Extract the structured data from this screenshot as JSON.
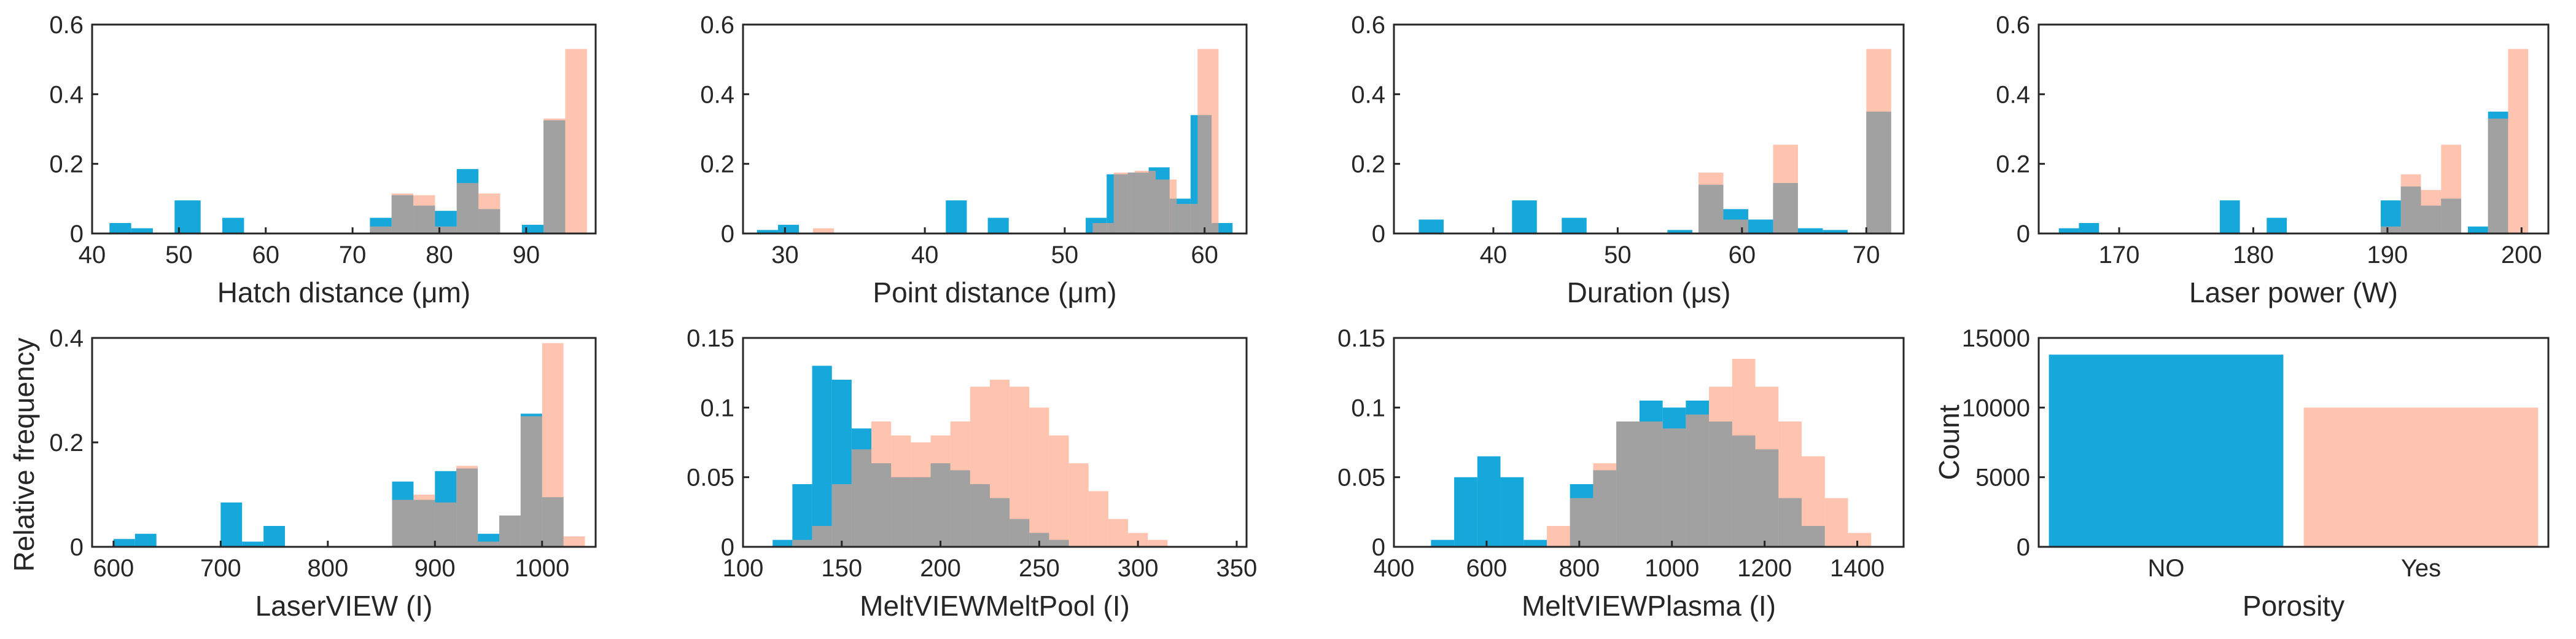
{
  "figure": {
    "shared_ylabel": "Relative frequency",
    "colors": {
      "no_porosity": "#0AA3D9",
      "porosity": "#FF9D7A",
      "overlap": "#B06D5C",
      "axis": "#262626"
    }
  },
  "chart_data": [
    {
      "type": "histogram",
      "id": "hatch",
      "xlabel": "Hatch distance (μm)",
      "ylabel": "",
      "xlim": [
        40,
        98
      ],
      "ylim": [
        0,
        0.6
      ],
      "xticks": [
        40,
        50,
        60,
        70,
        80,
        90
      ],
      "yticks": [
        0,
        0.2,
        0.4,
        0.6
      ],
      "xtick_labels": [
        "40",
        "50",
        "60",
        "70",
        "80",
        "90"
      ],
      "ytick_labels": [
        "0",
        "0.2",
        "0.4",
        "0.6"
      ],
      "series": [
        {
          "name": "NO",
          "bins": [
            [
              42,
              44.5,
              0.03
            ],
            [
              44.5,
              47,
              0.015
            ],
            [
              49.5,
              52.5,
              0.095
            ],
            [
              55,
              57.5,
              0.045
            ],
            [
              72,
              74.5,
              0.045
            ],
            [
              74.5,
              77,
              0.11
            ],
            [
              77,
              79.5,
              0.08
            ],
            [
              79.5,
              82,
              0.065
            ],
            [
              82,
              84.5,
              0.185
            ],
            [
              84.5,
              87,
              0.07
            ],
            [
              89.5,
              92,
              0.025
            ],
            [
              92,
              94.5,
              0.325
            ]
          ]
        },
        {
          "name": "Yes",
          "bins": [
            [
              72,
              74.5,
              0.02
            ],
            [
              74.5,
              77,
              0.115
            ],
            [
              77,
              79.5,
              0.11
            ],
            [
              79.5,
              82,
              0.02
            ],
            [
              82,
              84.5,
              0.145
            ],
            [
              84.5,
              87,
              0.115
            ],
            [
              92,
              94.5,
              0.33
            ],
            [
              94.5,
              97,
              0.53
            ]
          ]
        }
      ]
    },
    {
      "type": "histogram",
      "id": "point",
      "xlabel": "Point distance (μm)",
      "ylabel": "",
      "xlim": [
        27,
        63
      ],
      "ylim": [
        0,
        0.6
      ],
      "xticks": [
        30,
        40,
        50,
        60
      ],
      "yticks": [
        0,
        0.2,
        0.4,
        0.6
      ],
      "xtick_labels": [
        "30",
        "40",
        "50",
        "60"
      ],
      "ytick_labels": [
        "0",
        "0.2",
        "0.4",
        "0.6"
      ],
      "series": [
        {
          "name": "NO",
          "bins": [
            [
              28,
              29.5,
              0.01
            ],
            [
              29.5,
              31,
              0.025
            ],
            [
              41.5,
              43,
              0.095
            ],
            [
              44.5,
              46,
              0.045
            ],
            [
              51.5,
              53,
              0.045
            ],
            [
              53,
              54.5,
              0.17
            ],
            [
              54.5,
              56,
              0.175
            ],
            [
              56,
              57.5,
              0.19
            ],
            [
              57.5,
              59,
              0.1
            ],
            [
              59,
              60.5,
              0.34
            ],
            [
              60.5,
              62,
              0.03
            ]
          ]
        },
        {
          "name": "Yes",
          "bins": [
            [
              32,
              33.5,
              0.015
            ],
            [
              52,
              53.5,
              0.03
            ],
            [
              53.5,
              55,
              0.175
            ],
            [
              55,
              56.5,
              0.18
            ],
            [
              56.5,
              58,
              0.155
            ],
            [
              58,
              59.5,
              0.085
            ],
            [
              59.5,
              61,
              0.53
            ]
          ]
        }
      ]
    },
    {
      "type": "histogram",
      "id": "duration",
      "xlabel": "Duration (μs)",
      "ylabel": "",
      "xlim": [
        32,
        73
      ],
      "ylim": [
        0,
        0.6
      ],
      "xticks": [
        40,
        50,
        60,
        70
      ],
      "yticks": [
        0,
        0.2,
        0.4,
        0.6
      ],
      "xtick_labels": [
        "40",
        "50",
        "60",
        "70"
      ],
      "ytick_labels": [
        "0",
        "0.2",
        "0.4",
        "0.6"
      ],
      "series": [
        {
          "name": "NO",
          "bins": [
            [
              34,
              36,
              0.04
            ],
            [
              41.5,
              43.5,
              0.095
            ],
            [
              45.5,
              47.5,
              0.045
            ],
            [
              54,
              56,
              0.01
            ],
            [
              56.5,
              58.5,
              0.14
            ],
            [
              58.5,
              60.5,
              0.07
            ],
            [
              60.5,
              62.5,
              0.04
            ],
            [
              62.5,
              64.5,
              0.145
            ],
            [
              64.5,
              66.5,
              0.015
            ],
            [
              66.5,
              68.5,
              0.01
            ],
            [
              70,
              72,
              0.35
            ]
          ]
        },
        {
          "name": "Yes",
          "bins": [
            [
              56.5,
              58.5,
              0.175
            ],
            [
              58.5,
              60.5,
              0.04
            ],
            [
              62.5,
              64.5,
              0.255
            ],
            [
              70,
              72,
              0.53
            ]
          ]
        }
      ]
    },
    {
      "type": "histogram",
      "id": "laser",
      "xlabel": "Laser power (W)",
      "ylabel": "",
      "xlim": [
        164,
        202
      ],
      "ylim": [
        0,
        0.6
      ],
      "xticks": [
        170,
        180,
        190,
        200
      ],
      "yticks": [
        0,
        0.2,
        0.4,
        0.6
      ],
      "xtick_labels": [
        "170",
        "180",
        "190",
        "200"
      ],
      "ytick_labels": [
        "0",
        "0.2",
        "0.4",
        "0.6"
      ],
      "series": [
        {
          "name": "NO",
          "bins": [
            [
              165.5,
              167,
              0.015
            ],
            [
              167,
              168.5,
              0.03
            ],
            [
              177.5,
              179,
              0.095
            ],
            [
              181,
              182.5,
              0.045
            ],
            [
              189.5,
              191,
              0.095
            ],
            [
              191,
              192.5,
              0.135
            ],
            [
              192.5,
              194,
              0.08
            ],
            [
              194,
              195.5,
              0.1
            ],
            [
              196,
              197.5,
              0.02
            ],
            [
              197.5,
              199,
              0.35
            ]
          ]
        },
        {
          "name": "Yes",
          "bins": [
            [
              189.5,
              191,
              0.02
            ],
            [
              191,
              192.5,
              0.17
            ],
            [
              192.5,
              194,
              0.125
            ],
            [
              194,
              195.5,
              0.255
            ],
            [
              197.5,
              199,
              0.33
            ],
            [
              199,
              200.5,
              0.53
            ]
          ]
        }
      ]
    },
    {
      "type": "histogram",
      "id": "laserview",
      "xlabel": "LaserVIEW (I)",
      "ylabel": "",
      "xlim": [
        580,
        1050
      ],
      "ylim": [
        0,
        0.4
      ],
      "xticks": [
        600,
        700,
        800,
        900,
        1000
      ],
      "yticks": [
        0,
        0.2,
        0.4
      ],
      "xtick_labels": [
        "600",
        "700",
        "800",
        "900",
        "1000"
      ],
      "ytick_labels": [
        "0",
        "0.2",
        "0.4"
      ],
      "series": [
        {
          "name": "NO",
          "bins": [
            [
              600,
              620,
              0.015
            ],
            [
              620,
              640,
              0.025
            ],
            [
              700,
              720,
              0.085
            ],
            [
              720,
              740,
              0.01
            ],
            [
              740,
              760,
              0.04
            ],
            [
              860,
              880,
              0.125
            ],
            [
              880,
              900,
              0.09
            ],
            [
              900,
              920,
              0.145
            ],
            [
              920,
              940,
              0.15
            ],
            [
              940,
              960,
              0.025
            ],
            [
              960,
              980,
              0.06
            ],
            [
              980,
              1000,
              0.255
            ],
            [
              1000,
              1020,
              0.095
            ]
          ]
        },
        {
          "name": "Yes",
          "bins": [
            [
              860,
              880,
              0.09
            ],
            [
              880,
              900,
              0.1
            ],
            [
              900,
              920,
              0.085
            ],
            [
              920,
              940,
              0.155
            ],
            [
              940,
              960,
              0.01
            ],
            [
              960,
              980,
              0.06
            ],
            [
              980,
              1000,
              0.25
            ],
            [
              1000,
              1020,
              0.39
            ],
            [
              1020,
              1040,
              0.02
            ]
          ]
        }
      ]
    },
    {
      "type": "histogram",
      "id": "meltpool",
      "xlabel": "MeltVIEWMeltPool (I)",
      "ylabel": "",
      "xlim": [
        100,
        355
      ],
      "ylim": [
        0,
        0.15
      ],
      "xticks": [
        100,
        150,
        200,
        250,
        300,
        350
      ],
      "yticks": [
        0,
        0.05,
        0.1,
        0.15
      ],
      "xtick_labels": [
        "100",
        "150",
        "200",
        "250",
        "300",
        "350"
      ],
      "ytick_labels": [
        "0",
        "0.05",
        "0.1",
        "0.15"
      ],
      "series": [
        {
          "name": "NO",
          "bins": [
            [
              115,
              125,
              0.005
            ],
            [
              125,
              135,
              0.045
            ],
            [
              135,
              145,
              0.13
            ],
            [
              145,
              155,
              0.12
            ],
            [
              155,
              165,
              0.085
            ],
            [
              165,
              175,
              0.06
            ],
            [
              175,
              185,
              0.05
            ],
            [
              185,
              195,
              0.05
            ],
            [
              195,
              205,
              0.06
            ],
            [
              205,
              215,
              0.055
            ],
            [
              215,
              225,
              0.045
            ],
            [
              225,
              235,
              0.035
            ],
            [
              235,
              245,
              0.02
            ],
            [
              245,
              255,
              0.01
            ],
            [
              255,
              265,
              0.005
            ]
          ]
        },
        {
          "name": "Yes",
          "bins": [
            [
              125,
              135,
              0.005
            ],
            [
              135,
              145,
              0.015
            ],
            [
              145,
              155,
              0.045
            ],
            [
              155,
              165,
              0.07
            ],
            [
              165,
              175,
              0.09
            ],
            [
              175,
              185,
              0.08
            ],
            [
              185,
              195,
              0.075
            ],
            [
              195,
              205,
              0.08
            ],
            [
              205,
              215,
              0.09
            ],
            [
              215,
              225,
              0.115
            ],
            [
              225,
              235,
              0.12
            ],
            [
              235,
              245,
              0.115
            ],
            [
              245,
              255,
              0.1
            ],
            [
              255,
              265,
              0.08
            ],
            [
              265,
              275,
              0.06
            ],
            [
              275,
              285,
              0.04
            ],
            [
              285,
              295,
              0.02
            ],
            [
              295,
              305,
              0.01
            ],
            [
              305,
              315,
              0.005
            ]
          ]
        }
      ]
    },
    {
      "type": "histogram",
      "id": "plasma",
      "xlabel": "MeltVIEWPlasma (I)",
      "ylabel": "",
      "xlim": [
        400,
        1500
      ],
      "ylim": [
        0,
        0.15
      ],
      "xticks": [
        400,
        600,
        800,
        1000,
        1200,
        1400
      ],
      "yticks": [
        0,
        0.05,
        0.1,
        0.15
      ],
      "xtick_labels": [
        "400",
        "600",
        "800",
        "1000",
        "1200",
        "1400"
      ],
      "ytick_labels": [
        "0",
        "0.05",
        "0.1",
        "0.15"
      ],
      "series": [
        {
          "name": "NO",
          "bins": [
            [
              480,
              530,
              0.005
            ],
            [
              530,
              580,
              0.05
            ],
            [
              580,
              630,
              0.065
            ],
            [
              630,
              680,
              0.05
            ],
            [
              680,
              730,
              0.005
            ],
            [
              780,
              830,
              0.045
            ],
            [
              830,
              880,
              0.055
            ],
            [
              880,
              930,
              0.09
            ],
            [
              930,
              980,
              0.105
            ],
            [
              980,
              1030,
              0.1
            ],
            [
              1030,
              1080,
              0.105
            ],
            [
              1080,
              1130,
              0.09
            ],
            [
              1130,
              1180,
              0.08
            ],
            [
              1180,
              1230,
              0.07
            ],
            [
              1230,
              1280,
              0.035
            ],
            [
              1280,
              1330,
              0.015
            ]
          ]
        },
        {
          "name": "Yes",
          "bins": [
            [
              730,
              780,
              0.015
            ],
            [
              780,
              830,
              0.035
            ],
            [
              830,
              880,
              0.06
            ],
            [
              880,
              930,
              0.09
            ],
            [
              930,
              980,
              0.09
            ],
            [
              980,
              1030,
              0.085
            ],
            [
              1030,
              1080,
              0.095
            ],
            [
              1080,
              1130,
              0.115
            ],
            [
              1130,
              1180,
              0.135
            ],
            [
              1180,
              1230,
              0.115
            ],
            [
              1230,
              1280,
              0.09
            ],
            [
              1280,
              1330,
              0.065
            ],
            [
              1330,
              1380,
              0.035
            ],
            [
              1380,
              1430,
              0.01
            ]
          ]
        }
      ]
    },
    {
      "type": "bar",
      "id": "porosity",
      "xlabel": "Porosity",
      "ylabel": "Count",
      "categories": [
        "NO",
        "Yes"
      ],
      "values": [
        13800,
        10000
      ],
      "ylim": [
        0,
        15000
      ],
      "yticks": [
        0,
        5000,
        10000,
        15000
      ],
      "ytick_labels": [
        "0",
        "5000",
        "10000",
        "15000"
      ]
    }
  ]
}
